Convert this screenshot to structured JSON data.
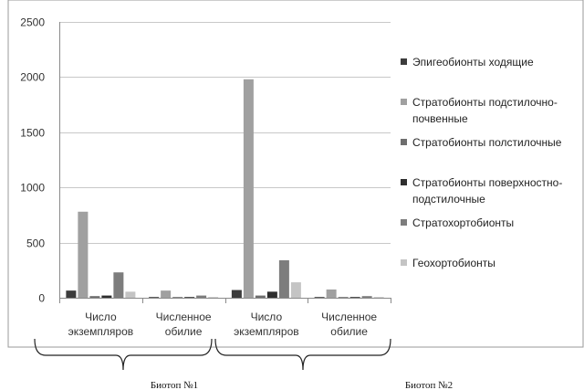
{
  "chart_data": {
    "type": "bar",
    "categories": [
      "Число экземпляров",
      "Численное обилие",
      "Число экземпляров",
      "Численное обилие"
    ],
    "category_lines": [
      [
        "Число",
        "экземпляров"
      ],
      [
        "Численное",
        "обилие"
      ],
      [
        "Число",
        "экземпляров"
      ],
      [
        "Численное",
        "обилие"
      ]
    ],
    "groups": [
      {
        "label": "Биотоп №1",
        "categories": [
          0,
          1
        ]
      },
      {
        "label": "Биотоп №2",
        "categories": [
          2,
          3
        ]
      }
    ],
    "series": [
      {
        "name": "Эпигеобионты ходящие",
        "legend_lines": [
          "Эпигеобионты ходящие"
        ],
        "color": "#3c3c3c",
        "values": [
          65,
          5,
          70,
          5
        ]
      },
      {
        "name": "Стратобионты подстилочно-почвенные",
        "legend_lines": [
          "Стратобионты подстилочно-",
          "почвенные"
        ],
        "color": "#a0a0a0",
        "values": [
          780,
          65,
          1980,
          75
        ]
      },
      {
        "name": "Стратобионты полстилочные",
        "legend_lines": [
          "Стратобионты полстилочные"
        ],
        "color": "#6e6e6e",
        "values": [
          15,
          5,
          20,
          5
        ]
      },
      {
        "name": "Стратобионты поверхностно-подстилочные",
        "legend_lines": [
          "Стратобионты поверхностно-",
          "подстилочные"
        ],
        "color": "#2e2e2e",
        "values": [
          20,
          3,
          55,
          5
        ]
      },
      {
        "name": "Стратохортобионты",
        "legend_lines": [
          "Стратохортобионты"
        ],
        "color": "#7d7d7d",
        "values": [
          230,
          20,
          340,
          15
        ]
      },
      {
        "name": "Геохортобионты",
        "legend_lines": [
          "Геохортобионты"
        ],
        "color": "#c4c4c4",
        "values": [
          55,
          3,
          140,
          5
        ]
      }
    ],
    "ylim": [
      0,
      2500
    ],
    "yticks": [
      0,
      500,
      1000,
      1500,
      2000,
      2500
    ],
    "grid": true,
    "legend": "right"
  }
}
